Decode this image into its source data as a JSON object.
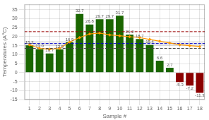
{
  "chart_data": {
    "type": "bar",
    "xlabel": "Sample #",
    "ylabel": "Temperatures (A°C)",
    "categories": [
      "1",
      "2",
      "3",
      "4",
      "5",
      "6",
      "7",
      "8",
      "9",
      "10",
      "11",
      "12",
      "13",
      "14",
      "15",
      "16",
      "17",
      "18"
    ],
    "series": [
      {
        "type": "bar",
        "colors": [
          "#1a6600",
          "#1a6600",
          "#1a6600",
          "#1a6600",
          "#1a6600",
          "#1a6600",
          "#1a6600",
          "#1a6600",
          "#1a6600",
          "#1a6600",
          "#1a6600",
          "#1a6600",
          "#1a6600",
          "#1a6600",
          "#1a6600",
          "#8b0000",
          "#8b0000",
          "#8b0000"
        ],
        "values": [
          15.2,
          13.0,
          10.7,
          12.9,
          16.9,
          32.7,
          26.8,
          29.7,
          29.7,
          31.7,
          21.2,
          18.7,
          15.4,
          6.6,
          2.7,
          -5.3,
          -7.2,
          -11.3
        ],
        "value_labels": [
          "15.2",
          "13.0",
          "10.7",
          "12.9",
          "16.9",
          "32.7",
          "26.8",
          "29.7",
          "29.7",
          "31.7",
          "21.2",
          "18.7",
          "15.4",
          "6.6",
          "2.7",
          "-5.3",
          "-7.2",
          "-11.3"
        ]
      },
      {
        "type": "line",
        "color": "#ff9900",
        "marker": "diamond",
        "values": [
          15.5,
          13.5,
          13.0,
          13.5,
          17.0,
          19.5,
          21.5,
          22.0,
          21.0,
          20.5,
          20.0,
          19.5,
          18.5,
          17.5,
          16.5,
          15.5,
          15.0,
          14.5
        ]
      }
    ],
    "hlines": [
      {
        "value": 13.5,
        "color": "#444444",
        "line_style": "dashed"
      },
      {
        "value": 16.2,
        "color": "#0000cc",
        "line_style": "dashed"
      },
      {
        "value": 22.8,
        "color": "#990000",
        "line_style": "dashed"
      }
    ],
    "band": {
      "low": 14.8,
      "high": 17.6,
      "color": "#aaaaaa"
    },
    "data_labels": true,
    "ylim": [
      -15,
      38
    ],
    "yticks": [
      -15,
      -10,
      -5,
      0,
      5,
      10,
      15,
      20,
      25,
      30,
      35
    ],
    "grid": true
  }
}
